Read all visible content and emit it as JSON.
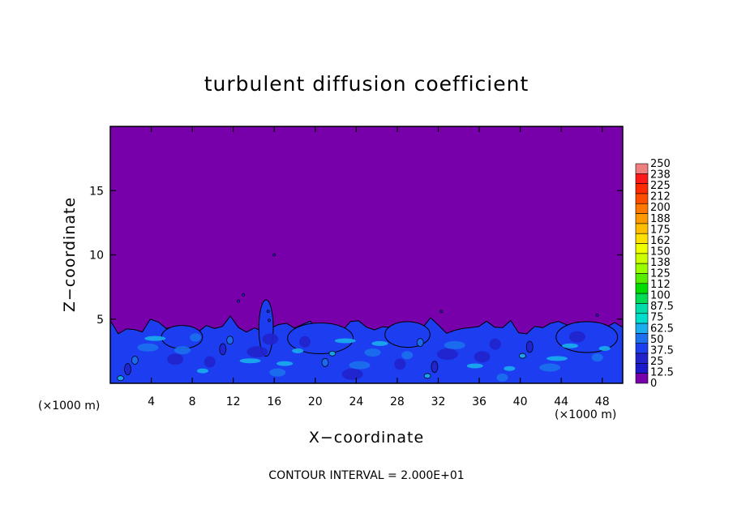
{
  "chart_data": {
    "type": "heatmap",
    "title": "turbulent diffusion coefficient",
    "xlabel": "X−coordinate",
    "ylabel": "Z−coordinate",
    "x_unit_left": "(×1000 m)",
    "x_unit_right": "(×1000 m)",
    "xlim": [
      0,
      50
    ],
    "ylim": [
      0,
      20
    ],
    "x_ticks": [
      4,
      8,
      12,
      16,
      20,
      24,
      28,
      32,
      36,
      40,
      44,
      48
    ],
    "y_ticks": [
      5,
      10,
      15
    ],
    "contour_interval_text": "CONTOUR INTERVAL = 2.000E+01",
    "boundary_layer_top": 4.5,
    "colorbar": {
      "labels": [
        "250",
        "238",
        "225",
        "212",
        "200",
        "188",
        "175",
        "162",
        "150",
        "138",
        "125",
        "112",
        "100",
        "87.5",
        "75",
        "62.5",
        "50",
        "37.5",
        "25",
        "12.5",
        "0"
      ],
      "colors": [
        "#f08080",
        "#ff1a1a",
        "#ff2a00",
        "#ff4d00",
        "#ff7700",
        "#ff9900",
        "#ffbf00",
        "#ffe000",
        "#eeff00",
        "#ccff00",
        "#99ff00",
        "#55ee00",
        "#00dd00",
        "#00dd55",
        "#00ddaa",
        "#00ddcc",
        "#1aaeee",
        "#1c70ee",
        "#1c3ef0",
        "#2222cc",
        "#1a1acc",
        "#7700aa"
      ]
    },
    "background_value_color": "#7700aa"
  }
}
